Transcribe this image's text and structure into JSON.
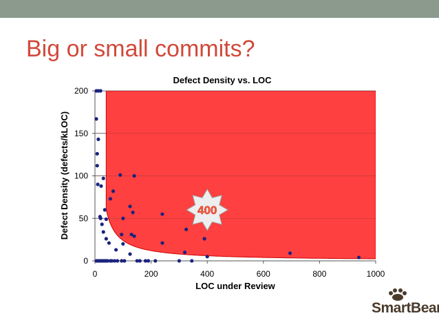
{
  "slide": {
    "title": "Big or small commits?"
  },
  "logo": {
    "text": "SmartBear",
    "icon": "paw-icon"
  },
  "colors": {
    "title": "#d1493a",
    "top_bar": "#8c9a8e",
    "region_fill": "#ff4040",
    "region_stroke": "#cc0000",
    "points": "#1a237e",
    "badge_fill": "#eeeeee",
    "badge_text": "#ff5a3c"
  },
  "chart_data": {
    "type": "scatter",
    "title": "Defect Density vs. LOC",
    "xlabel": "LOC under Review",
    "ylabel": "Defect Density (defects/kLOC)",
    "xlim": [
      0,
      1000
    ],
    "ylim": [
      0,
      200
    ],
    "xticks": [
      "0",
      "200",
      "400",
      "600",
      "800",
      "1000"
    ],
    "yticks": [
      "0",
      "50",
      "100",
      "150",
      "200"
    ],
    "grid": "horizontal",
    "annotation": {
      "label": "400",
      "x": 400,
      "y": 60
    },
    "highlight_curve": {
      "x_start": 40,
      "x_end": 1000,
      "k": 2400
    },
    "points": [
      [
        5,
        200
      ],
      [
        12,
        200
      ],
      [
        20,
        200
      ],
      [
        5,
        167
      ],
      [
        12,
        143
      ],
      [
        8,
        126
      ],
      [
        8,
        112
      ],
      [
        10,
        90
      ],
      [
        22,
        88
      ],
      [
        30,
        97
      ],
      [
        65,
        82
      ],
      [
        55,
        73
      ],
      [
        90,
        101
      ],
      [
        140,
        100
      ],
      [
        125,
        64
      ],
      [
        135,
        57
      ],
      [
        35,
        60
      ],
      [
        18,
        52
      ],
      [
        20,
        50
      ],
      [
        40,
        49
      ],
      [
        100,
        50
      ],
      [
        25,
        43
      ],
      [
        30,
        34
      ],
      [
        40,
        26
      ],
      [
        50,
        21
      ],
      [
        95,
        31
      ],
      [
        100,
        20
      ],
      [
        130,
        31
      ],
      [
        140,
        29
      ],
      [
        75,
        13
      ],
      [
        125,
        8
      ],
      [
        240,
        55
      ],
      [
        240,
        21
      ],
      [
        325,
        37
      ],
      [
        390,
        26
      ],
      [
        320,
        10
      ],
      [
        400,
        5
      ],
      [
        695,
        9
      ],
      [
        940,
        4
      ],
      [
        5,
        0
      ],
      [
        10,
        0
      ],
      [
        15,
        0
      ],
      [
        20,
        0
      ],
      [
        25,
        0
      ],
      [
        30,
        0
      ],
      [
        35,
        0
      ],
      [
        40,
        0
      ],
      [
        45,
        0
      ],
      [
        55,
        0
      ],
      [
        60,
        0
      ],
      [
        70,
        0
      ],
      [
        80,
        0
      ],
      [
        95,
        0
      ],
      [
        105,
        0
      ],
      [
        150,
        0
      ],
      [
        160,
        0
      ],
      [
        180,
        0
      ],
      [
        190,
        0
      ],
      [
        215,
        0
      ],
      [
        300,
        0
      ],
      [
        345,
        0
      ]
    ]
  }
}
